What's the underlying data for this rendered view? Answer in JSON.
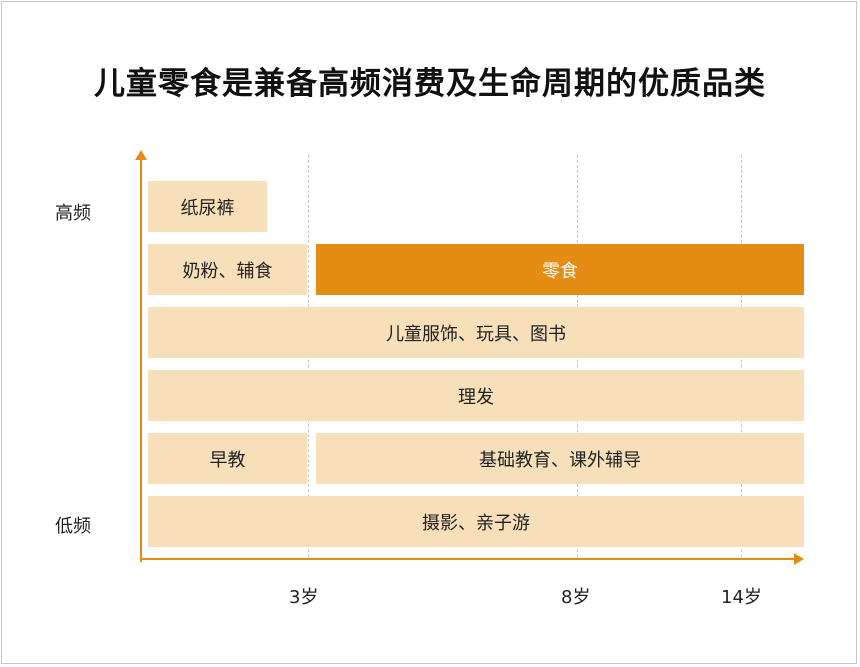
{
  "title": "儿童零食是兼备高频消费及生命周期的优质品类",
  "y_axis": {
    "top": "高频",
    "bottom": "低频"
  },
  "x_axis": {
    "ticks": [
      "3岁",
      "8岁",
      "14岁"
    ]
  },
  "categories": {
    "diapers": "纸尿裤",
    "milk_food": "奶粉、辅食",
    "snacks": "零食",
    "clothing_toys_books": "儿童服饰、玩具、图书",
    "haircut": "理发",
    "early_education": "早教",
    "basic_education": "基础教育、课外辅导",
    "photo_parent_child": "摄影、亲子游"
  },
  "colors": {
    "accent": "#e58c14",
    "bar": "#f6dfb9"
  }
}
